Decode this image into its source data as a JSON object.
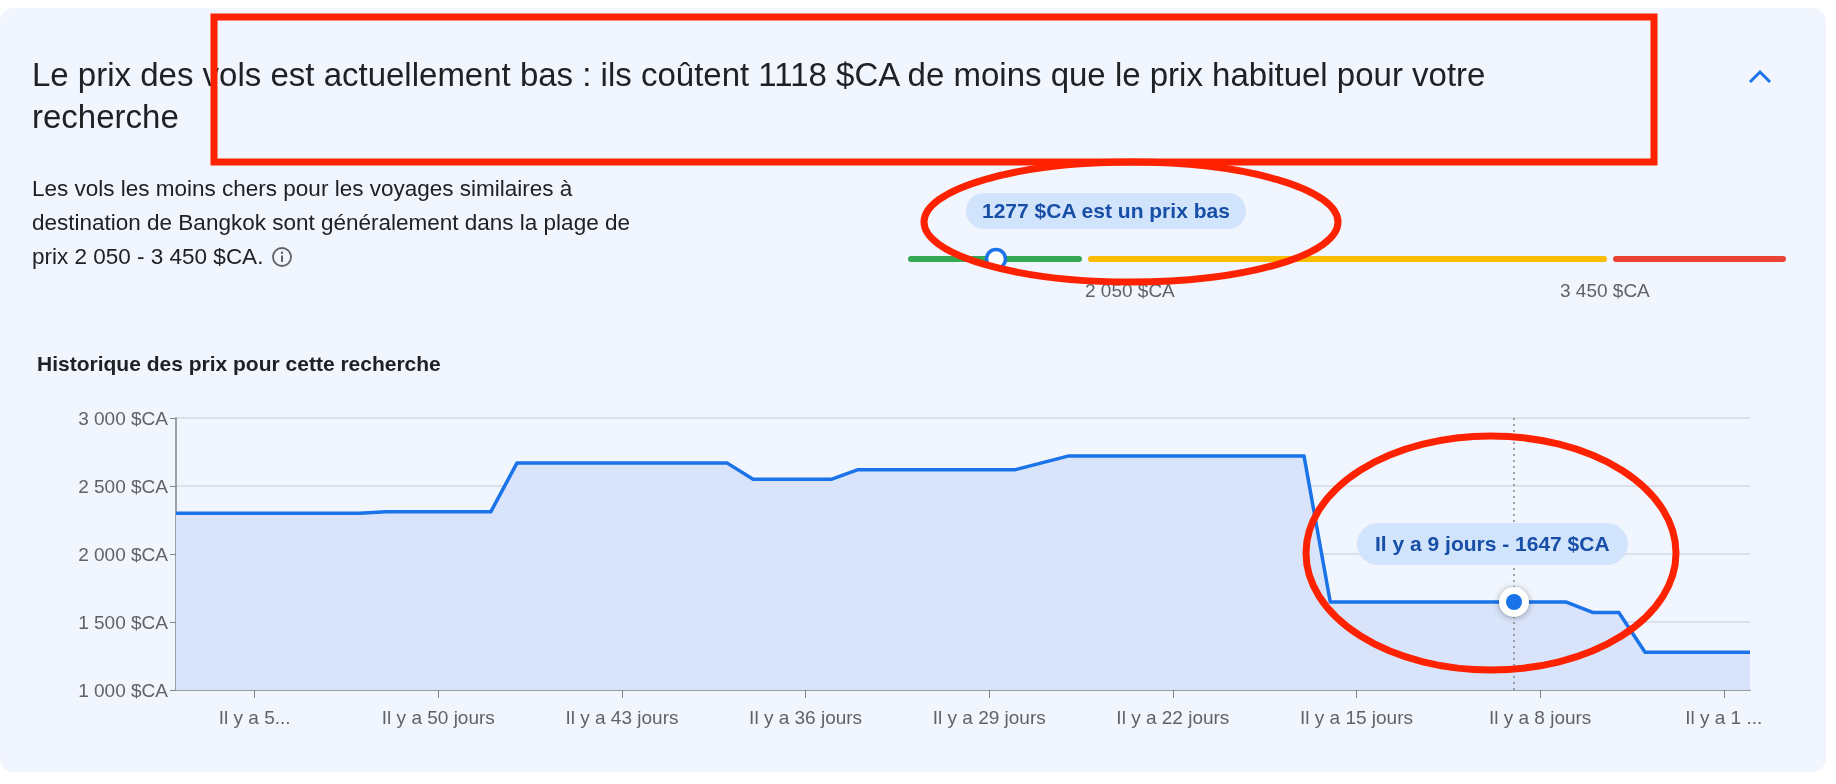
{
  "chart_data": [
    {
      "type": "other",
      "title": "Le prix des vols est actuellement bas : ils coûtent 1118 $CA de moins que le prix habituel pour votre recherche",
      "subtitle": "Les vols les moins chers pour les voyages similaires à destination de Bangkok sont généralement dans la plage de prix 2 050 - 3 450 $CA.",
      "categories": [
        null,
        null,
        null
      ],
      "colors": [
        "#34a853",
        "#fbbc04",
        "#ea4335"
      ],
      "annotations": [
        "1277 $CA est un prix bas",
        "2 050 $CA",
        "3 450 $CA"
      ]
    },
    {
      "type": "area",
      "title": "Historique des prix pour cette recherche",
      "categories": [
        null,
        null,
        null,
        "Il y a 5...",
        null,
        null,
        null,
        null,
        null,
        null,
        "Il y a 50 jours",
        null,
        null,
        null,
        null,
        null,
        null,
        "Il y a 43 jours",
        null,
        null,
        null,
        null,
        null,
        null,
        "Il y a 36 jours",
        null,
        null,
        null,
        null,
        null,
        null,
        "Il y a 29 jours",
        null,
        null,
        null,
        null,
        null,
        null,
        "Il y a 22 jours",
        null,
        null,
        null,
        null,
        null,
        null,
        "Il y a 15 jours",
        null,
        null,
        null,
        null,
        null,
        null,
        "Il y a 8 jours",
        null,
        null,
        null,
        null,
        null,
        null,
        "Il y a 1 ...",
        null
      ],
      "series": [
        {
          "color": "#1a73e8",
          "values": [
            2300,
            2300,
            2300,
            2300,
            2300,
            2300,
            2300,
            2300,
            2310,
            2310,
            2310,
            2310,
            2310,
            2670,
            2670,
            2670,
            2670,
            2670,
            2670,
            2670,
            2670,
            2670,
            2550,
            2550,
            2550,
            2550,
            2620,
            2620,
            2620,
            2620,
            2620,
            2620,
            2620,
            2670,
            2720,
            2720,
            2720,
            2720,
            2720,
            2720,
            2720,
            2720,
            2720,
            2720,
            1647,
            1647,
            1647,
            1647,
            1647,
            1647,
            1647,
            1647,
            1647,
            1647,
            1570,
            1570,
            1277,
            1277,
            1277,
            1277,
            1277
          ]
        }
      ],
      "ylim": [
        1000,
        3000
      ],
      "yticks": [
        {
          "value": 1000,
          "label": "1 000 $CA"
        },
        {
          "value": 1500,
          "label": "1 500 $CA"
        },
        {
          "value": 2000,
          "label": "2 000 $CA"
        },
        {
          "value": 2500,
          "label": "2 500 $CA"
        },
        {
          "value": 3000,
          "label": "3 000 $CA"
        }
      ],
      "grid": "y",
      "marker": "none",
      "annotations": [
        "Il y a 9 jours - 1647 $CA"
      ]
    }
  ]
}
